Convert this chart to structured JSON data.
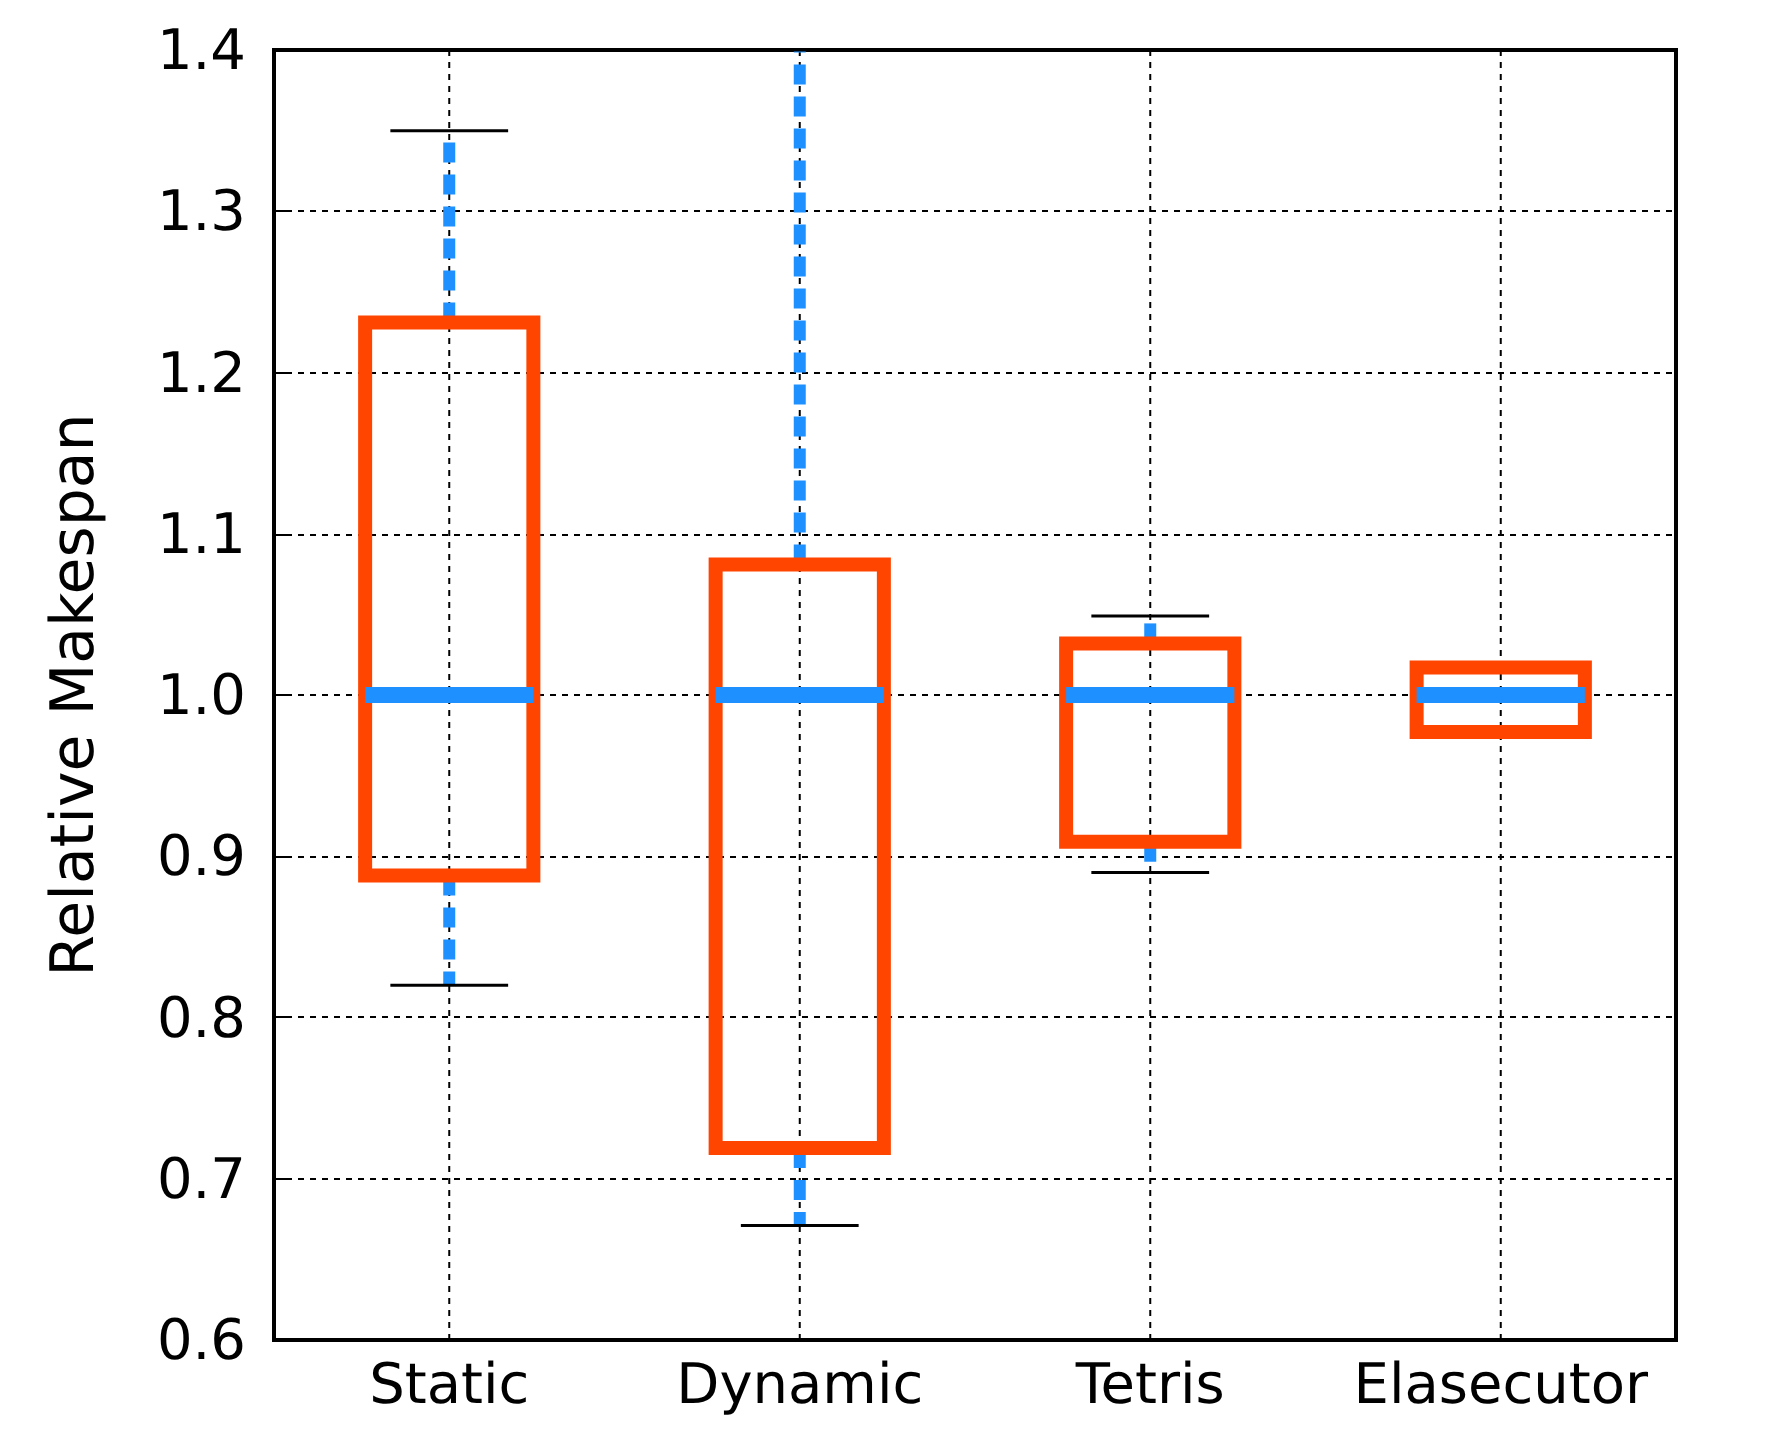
{
  "chart_data": {
    "type": "box",
    "ylabel": "Relative Makespan",
    "categories": [
      "Static",
      "Dynamic",
      "Tetris",
      "Elasecutor"
    ],
    "series": [
      {
        "color": "#ff4500",
        "boxes": [
          {
            "low": 0.82,
            "q1": 0.888,
            "median": 1.0,
            "q3": 1.231,
            "high": 1.35
          },
          {
            "low": 0.671,
            "q1": 0.719,
            "median": 1.0,
            "q3": 1.081,
            "high": 1.4
          },
          {
            "low": 0.89,
            "q1": 0.909,
            "median": 1.0,
            "q3": 1.032,
            "high": 1.049
          },
          {
            "low": 0.975,
            "q1": 0.977,
            "median": 1.0,
            "q3": 1.017,
            "high": 1.019
          }
        ]
      }
    ],
    "ylim": [
      0.6,
      1.4
    ],
    "yticks": [
      0.6,
      0.7,
      0.8,
      0.9,
      {
        "value": 1,
        "label": "1.0"
      },
      1.1,
      1.2,
      1.3,
      1.4
    ],
    "grid": true
  }
}
